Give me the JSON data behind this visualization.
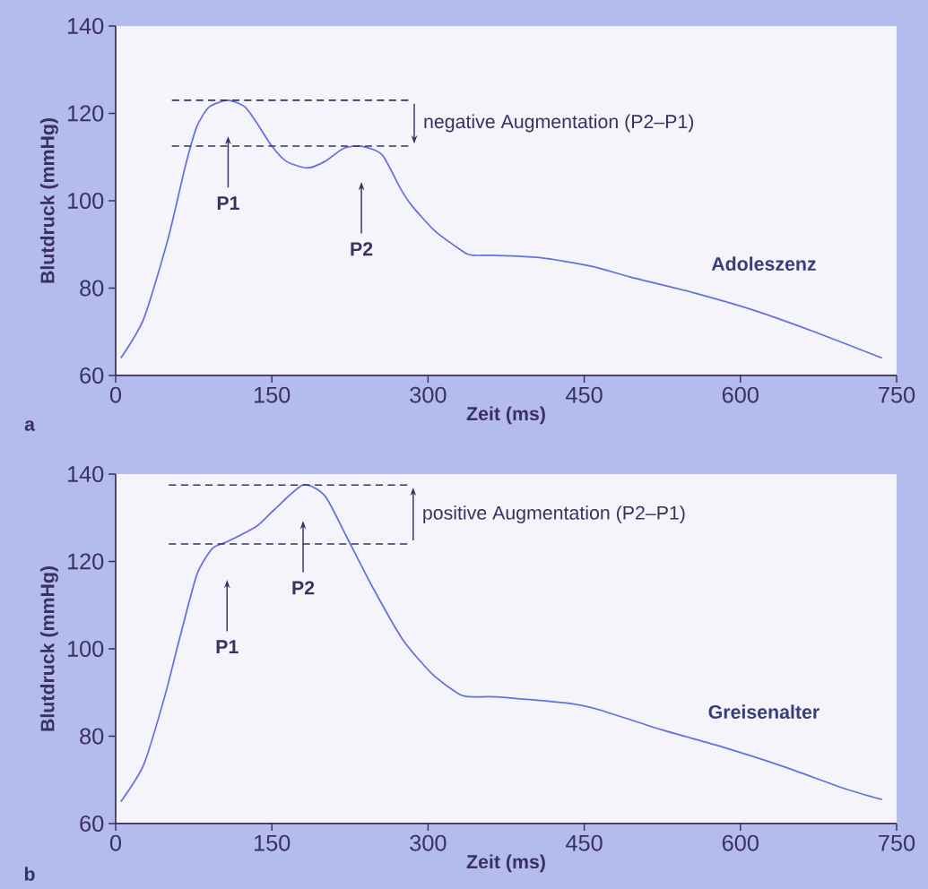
{
  "chart_data": [
    {
      "type": "line",
      "xlabel": "Zeit (ms)",
      "ylabel": "Blutdruck (mmHg)",
      "xlim": [
        0,
        750
      ],
      "ylim": [
        60,
        140
      ],
      "xticks": [
        0,
        150,
        300,
        450,
        600,
        750
      ],
      "yticks": [
        60,
        80,
        100,
        120,
        140
      ],
      "series": [
        {
          "name": "Adoleszenz",
          "color": "#6470e0",
          "x": [
            5,
            27,
            50,
            67,
            78,
            90,
            108,
            124,
            135,
            150,
            164,
            184,
            201,
            219,
            236,
            256,
            273,
            284,
            307,
            336,
            345,
            363,
            407,
            457,
            495,
            554,
            612,
            671,
            736
          ],
          "values": [
            64,
            73,
            91,
            108,
            117,
            121.5,
            123,
            121.5,
            118,
            112.5,
            109,
            107.5,
            109,
            112,
            112.5,
            110.5,
            103,
            99,
            93,
            88,
            87.5,
            87.5,
            87,
            85,
            82.5,
            79,
            75,
            70,
            64
          ]
        },
        {
          "type": "line",
          "color": "#3b3160",
          "line_style": "dashed",
          "x": [
            54,
            281
          ],
          "values": [
            123,
            123
          ]
        },
        {
          "type": "line",
          "color": "#3b3160",
          "line_style": "dashed",
          "x": [
            54,
            281
          ],
          "values": [
            112.5,
            112.5
          ]
        }
      ],
      "annotations": [
        "P1",
        "P2",
        "negative Augmentation (P2–P1)",
        "a"
      ]
    },
    {
      "type": "line",
      "xlabel": "Zeit (ms)",
      "ylabel": "Blutdruck (mmHg)",
      "xlim": [
        0,
        750
      ],
      "ylim": [
        60,
        140
      ],
      "xticks": [
        0,
        150,
        300,
        450,
        600,
        750
      ],
      "yticks": [
        60,
        80,
        100,
        120,
        140
      ],
      "series": [
        {
          "name": "Greisenalter",
          "color": "#6470e0",
          "x": [
            5,
            27,
            47,
            61,
            78,
            93,
            107,
            135,
            153,
            180,
            201,
            221,
            247,
            276,
            305,
            331,
            345,
            366,
            436,
            465,
            524,
            583,
            642,
            700,
            736
          ],
          "values": [
            65,
            73.5,
            89,
            102,
            117,
            123,
            124.5,
            128,
            132,
            137.5,
            135,
            126,
            114,
            102,
            94,
            89.5,
            89,
            89,
            87.5,
            86,
            81.5,
            77.5,
            73,
            68,
            65.5
          ]
        },
        {
          "type": "line",
          "color": "#3b3160",
          "line_style": "dashed",
          "x": [
            51,
            280
          ],
          "values": [
            124,
            124
          ]
        },
        {
          "type": "line",
          "color": "#3b3160",
          "line_style": "dashed",
          "x": [
            51,
            280
          ],
          "values": [
            137.5,
            137.5
          ]
        }
      ],
      "annotations": [
        "P1",
        "P2",
        "positive Augmentation (P2–P1)",
        "b"
      ]
    }
  ]
}
